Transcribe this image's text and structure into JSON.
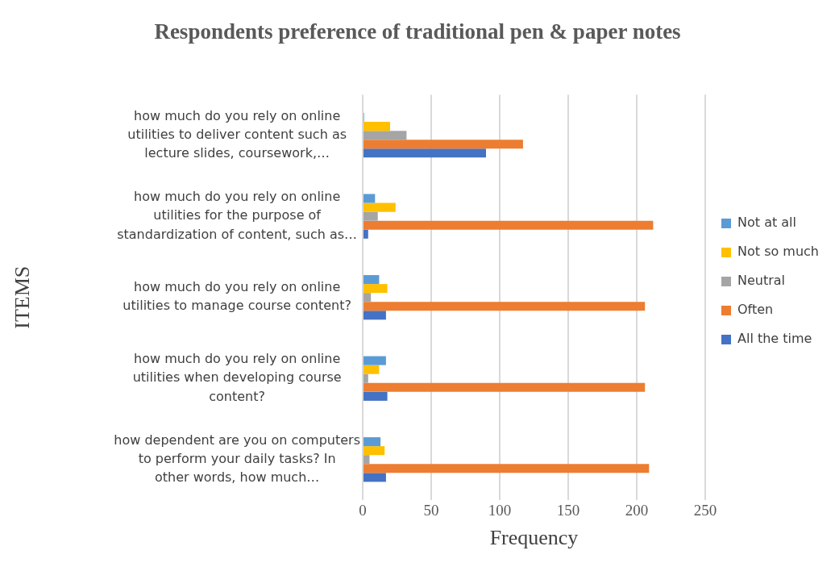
{
  "chart_data": {
    "type": "bar",
    "orientation": "horizontal",
    "title": "Respondents preference of traditional pen & paper notes",
    "xlabel": "Frequency",
    "ylabel": "ITEMS",
    "categories": [
      "how much do you rely on online utilities to deliver content such as lecture slides, coursework,…",
      "how much do you rely on online utilities for the purpose of standardization of content, such as…",
      "how much do you rely on online utilities to manage course content?",
      "how much do you rely on online utilities when developing course content?",
      "how dependent are you on computers to perform your daily tasks? In other words, how much…"
    ],
    "series": [
      {
        "name": "Not at all",
        "color": "#5b9bd5",
        "values": [
          1,
          9,
          12,
          17,
          13
        ]
      },
      {
        "name": "Not so much",
        "color": "#ffc000",
        "values": [
          20,
          24,
          18,
          12,
          16
        ]
      },
      {
        "name": "Neutral",
        "color": "#a5a5a5",
        "values": [
          32,
          11,
          6,
          4,
          5
        ]
      },
      {
        "name": "Often",
        "color": "#ed7d31",
        "values": [
          117,
          212,
          206,
          206,
          209
        ]
      },
      {
        "name": "All the time",
        "color": "#4472c4",
        "values": [
          90,
          4,
          17,
          18,
          17
        ]
      }
    ],
    "xlim": [
      0,
      250
    ],
    "xticks": [
      0,
      50,
      100,
      150,
      200,
      250
    ],
    "grid": "x",
    "legend": "right"
  }
}
